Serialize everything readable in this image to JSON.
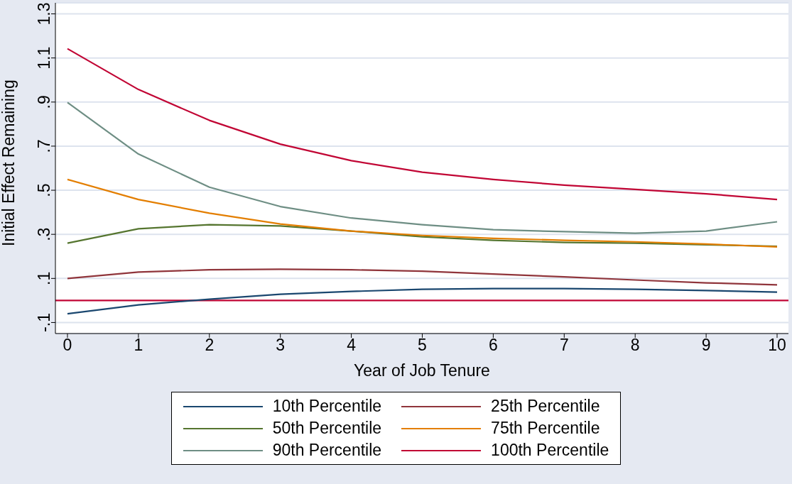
{
  "chart_data": {
    "type": "line",
    "xlabel": "Year of Job Tenure",
    "ylabel": "Initial Effect Remaining",
    "x": [
      0,
      1,
      2,
      3,
      4,
      5,
      6,
      7,
      8,
      9,
      10
    ],
    "series": [
      {
        "name": "10th Percentile",
        "color": "#1a476f",
        "values": [
          -0.06,
          -0.02,
          0.006,
          0.028,
          0.041,
          0.051,
          0.054,
          0.054,
          0.051,
          0.045,
          0.038
        ]
      },
      {
        "name": "25th Percentile",
        "color": "#90353b",
        "values": [
          0.1,
          0.129,
          0.139,
          0.142,
          0.139,
          0.133,
          0.12,
          0.107,
          0.093,
          0.08,
          0.071
        ]
      },
      {
        "name": "50th Percentile",
        "color": "#55752f",
        "values": [
          0.26,
          0.325,
          0.344,
          0.338,
          0.315,
          0.289,
          0.273,
          0.263,
          0.26,
          0.253,
          0.246
        ]
      },
      {
        "name": "75th Percentile",
        "color": "#e37e00",
        "values": [
          0.549,
          0.458,
          0.396,
          0.347,
          0.315,
          0.295,
          0.282,
          0.273,
          0.266,
          0.256,
          0.243
        ]
      },
      {
        "name": "90th Percentile",
        "color": "#6e8e84",
        "values": [
          0.898,
          0.664,
          0.514,
          0.426,
          0.374,
          0.344,
          0.321,
          0.312,
          0.305,
          0.315,
          0.357
        ]
      },
      {
        "name": "100th Percentile",
        "color": "#c10534",
        "values": [
          1.142,
          0.957,
          0.817,
          0.709,
          0.634,
          0.582,
          0.549,
          0.523,
          0.504,
          0.484,
          0.458
        ]
      }
    ],
    "xlim": [
      -0.17,
      10.16
    ],
    "xticks": [
      0,
      1,
      2,
      3,
      4,
      5,
      6,
      7,
      8,
      9,
      10
    ],
    "ylim": [
      -0.15,
      1.35
    ],
    "yticks": [
      {
        "value": -0.1,
        "label": "-.1"
      },
      {
        "value": 0.1,
        "label": ".1"
      },
      {
        "value": 0.3,
        "label": ".3"
      },
      {
        "value": 0.5,
        "label": ".5"
      },
      {
        "value": 0.7,
        "label": ".7"
      },
      {
        "value": 0.9,
        "label": ".9"
      },
      {
        "value": 1.1,
        "label": "1.1"
      },
      {
        "value": 1.3,
        "label": "1.3"
      }
    ],
    "ref_lines": [
      {
        "axis": "y",
        "value": 0,
        "color": "#c10534"
      }
    ],
    "grid": "y",
    "legend": "bottom",
    "marker": "none",
    "line_style": "solid"
  }
}
